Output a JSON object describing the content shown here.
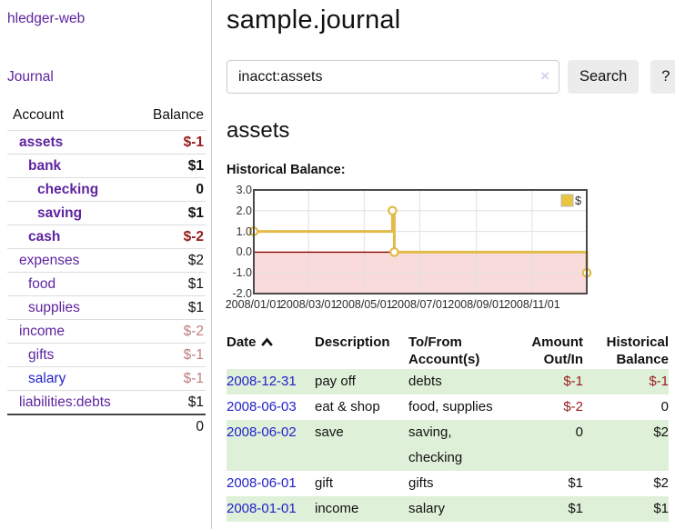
{
  "sidebar": {
    "app_title": "hledger-web",
    "nav": {
      "journal": "Journal"
    },
    "table": {
      "account_header": "Account",
      "balance_header": "Balance",
      "accounts": [
        {
          "name": "assets",
          "balance": "$-1",
          "level": 1,
          "bold": true,
          "blue": false
        },
        {
          "name": "bank",
          "balance": "$1",
          "level": 2,
          "bold": true,
          "blue": false
        },
        {
          "name": "checking",
          "balance": "0",
          "level": 3,
          "bold": true,
          "blue": false
        },
        {
          "name": "saving",
          "balance": "$1",
          "level": 3,
          "bold": true,
          "blue": false
        },
        {
          "name": "cash",
          "balance": "$-2",
          "level": 2,
          "bold": true,
          "blue": false
        },
        {
          "name": "expenses",
          "balance": "$2",
          "level": 1,
          "bold": false,
          "blue": false
        },
        {
          "name": "food",
          "balance": "$1",
          "level": 2,
          "bold": false,
          "blue": false
        },
        {
          "name": "supplies",
          "balance": "$1",
          "level": 2,
          "bold": false,
          "blue": false
        },
        {
          "name": "income",
          "balance": "$-2",
          "level": 1,
          "bold": false,
          "blue": false
        },
        {
          "name": "gifts",
          "balance": "$-1",
          "level": 2,
          "bold": false,
          "blue": false
        },
        {
          "name": "salary",
          "balance": "$-1",
          "level": 2,
          "bold": false,
          "blue": true
        },
        {
          "name": "liabilities:debts",
          "balance": "$1",
          "level": 1,
          "bold": false,
          "blue": false
        }
      ],
      "total": "0"
    }
  },
  "main": {
    "title": "sample.journal",
    "search": {
      "value": "inacct:assets",
      "clear": "×",
      "search_button": "Search",
      "help_button": "?"
    },
    "account_heading": "assets",
    "chart_heading": "Historical Balance:"
  },
  "chart_data": {
    "type": "line",
    "title": "Historical Balance",
    "step": true,
    "series": [
      {
        "name": "$",
        "points": [
          [
            "2008-01-01",
            1.0
          ],
          [
            "2008-06-01",
            2.0
          ],
          [
            "2008-06-03",
            0.0
          ],
          [
            "2008-12-31",
            -1.0
          ]
        ]
      }
    ],
    "ylim": [
      -2.0,
      3.0
    ],
    "yticks": [
      3.0,
      2.0,
      1.0,
      0.0,
      -1.0,
      -2.0
    ],
    "ytick_labels": [
      "3.0",
      "2.0",
      "1.0",
      "0.0",
      "-1.0",
      "-2.0"
    ],
    "xrange": [
      "2008-01-01",
      "2008-12-31"
    ],
    "xticks": [
      "2008-01-01",
      "2008-03-01",
      "2008-05-01",
      "2008-07-01",
      "2008-09-01",
      "2008-11-01"
    ],
    "xtick_labels": [
      "2008/01/01",
      "2008/03/01",
      "2008/05/01",
      "2008/07/01",
      "2008/09/01",
      "2008/11/01"
    ],
    "grid": true,
    "legend_position": "top-right",
    "negative_region_shaded": true,
    "colors": {
      "line": "#e2bb4a",
      "marker_fill": "#ffffff",
      "legend_swatch": "#e9c53f",
      "negative_fill": "#fadbdb",
      "zero_line": "#8b0000",
      "grid": "#e0e0e0",
      "border": "#4a4a4a"
    }
  },
  "register": {
    "headers": {
      "date": "Date",
      "description": "Description",
      "accounts": "To/From Account(s)",
      "amount": "Amount Out/In",
      "balance": "Historical Balance"
    },
    "rows": [
      {
        "date": "2008-12-31",
        "description": "pay off",
        "accounts": "debts",
        "amount": "$-1",
        "balance": "$-1"
      },
      {
        "date": "2008-06-03",
        "description": "eat & shop",
        "accounts": "food, supplies",
        "amount": "$-2",
        "balance": "0"
      },
      {
        "date": "2008-06-02",
        "description": "save",
        "accounts": "saving, checking",
        "amount": "0",
        "balance": "$2"
      },
      {
        "date": "2008-06-01",
        "description": "gift",
        "accounts": "gifts",
        "amount": "$1",
        "balance": "$2"
      },
      {
        "date": "2008-01-01",
        "description": "income",
        "accounts": "salary",
        "amount": "$1",
        "balance": "$1"
      }
    ]
  },
  "colors": {
    "link_purple": "#5f249f",
    "link_blue": "#2222cc",
    "negative_strong": "#961b1b",
    "negative_soft": "#c17d7d",
    "row_highlight_green": "#dff0d8"
  }
}
